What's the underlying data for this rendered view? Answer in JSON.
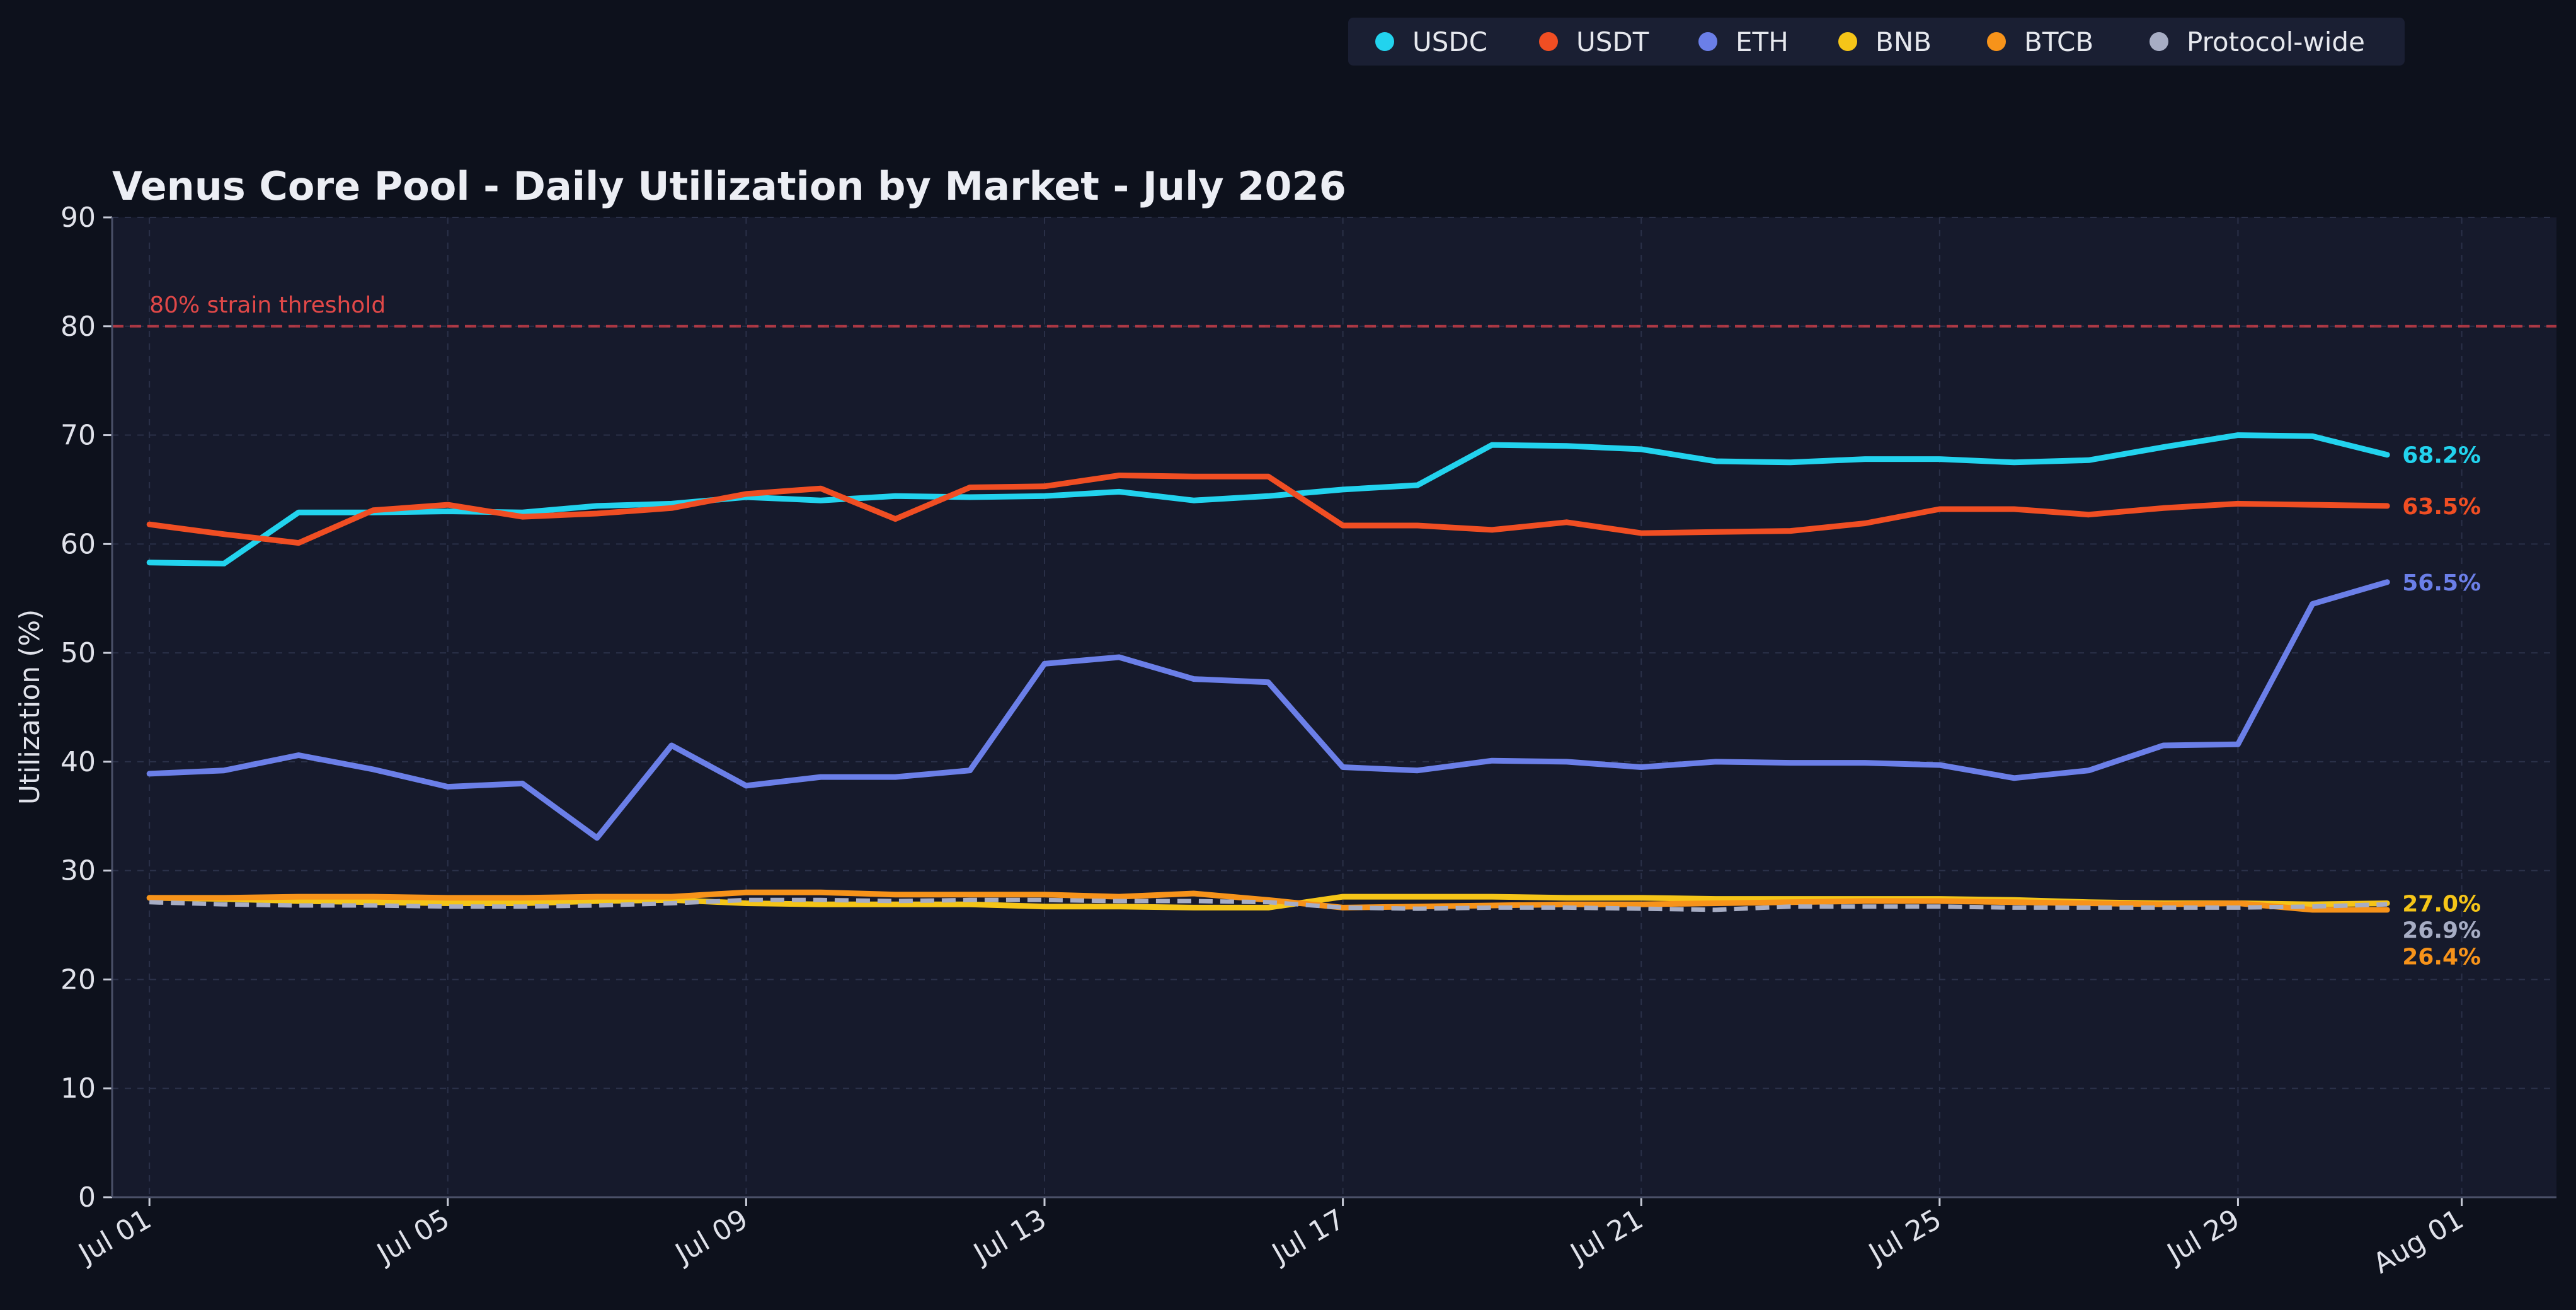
{
  "chart_data": {
    "type": "line",
    "title": "Venus Core Pool - Daily Utilization by Market - July 2026",
    "xlabel": "",
    "ylabel": "Utilization (%)",
    "ylim": [
      0,
      90
    ],
    "yticks": [
      0,
      10,
      20,
      30,
      40,
      50,
      60,
      70,
      80,
      90
    ],
    "x": [
      "2026-07-01",
      "2026-07-02",
      "2026-07-03",
      "2026-07-04",
      "2026-07-05",
      "2026-07-06",
      "2026-07-07",
      "2026-07-08",
      "2026-07-09",
      "2026-07-10",
      "2026-07-11",
      "2026-07-12",
      "2026-07-13",
      "2026-07-14",
      "2026-07-15",
      "2026-07-16",
      "2026-07-17",
      "2026-07-18",
      "2026-07-19",
      "2026-07-20",
      "2026-07-21",
      "2026-07-22",
      "2026-07-23",
      "2026-07-24",
      "2026-07-25",
      "2026-07-26",
      "2026-07-27",
      "2026-07-28",
      "2026-07-29",
      "2026-07-30",
      "2026-07-31"
    ],
    "xlim": [
      "2026-06-30",
      "2026-08-02"
    ],
    "xticks": [
      {
        "date": "2026-07-01",
        "label": "Jul 01"
      },
      {
        "date": "2026-07-05",
        "label": "Jul 05"
      },
      {
        "date": "2026-07-09",
        "label": "Jul 09"
      },
      {
        "date": "2026-07-13",
        "label": "Jul 13"
      },
      {
        "date": "2026-07-17",
        "label": "Jul 17"
      },
      {
        "date": "2026-07-21",
        "label": "Jul 21"
      },
      {
        "date": "2026-07-25",
        "label": "Jul 25"
      },
      {
        "date": "2026-07-29",
        "label": "Jul 29"
      },
      {
        "date": "2026-08-01",
        "label": "Aug 01"
      }
    ],
    "grid": true,
    "legend_position": "top-right",
    "threshold": {
      "value": 80,
      "label": "80% strain threshold",
      "color": "#d9404a"
    },
    "series": [
      {
        "name": "USDC",
        "color": "#22d3ee",
        "end_label": "68.2%",
        "dashed": false,
        "values": [
          58.3,
          58.2,
          62.9,
          62.9,
          63.0,
          62.9,
          63.5,
          63.7,
          64.3,
          64.0,
          64.4,
          64.3,
          64.4,
          64.8,
          64.0,
          64.4,
          65.0,
          65.4,
          69.1,
          69.0,
          68.7,
          67.6,
          67.5,
          67.8,
          67.8,
          67.5,
          67.7,
          68.9,
          70.0,
          69.9,
          68.2
        ]
      },
      {
        "name": "USDT",
        "color": "#f04e23",
        "end_label": "63.5%",
        "dashed": false,
        "values": [
          61.8,
          60.9,
          60.1,
          63.1,
          63.6,
          62.5,
          62.8,
          63.3,
          64.6,
          65.1,
          62.3,
          65.2,
          65.3,
          66.3,
          66.2,
          66.2,
          61.7,
          61.7,
          61.3,
          62.0,
          61.0,
          61.1,
          61.2,
          61.9,
          63.2,
          63.2,
          62.7,
          63.3,
          63.7,
          63.6,
          63.5
        ]
      },
      {
        "name": "ETH",
        "color": "#6b7fe8",
        "end_label": "56.5%",
        "dashed": false,
        "values": [
          38.9,
          39.2,
          40.6,
          39.3,
          37.7,
          38.0,
          33.0,
          41.5,
          37.8,
          38.6,
          38.6,
          39.2,
          49.0,
          49.6,
          47.6,
          47.3,
          39.5,
          39.2,
          40.1,
          40.0,
          39.5,
          40.0,
          39.9,
          39.9,
          39.7,
          38.5,
          39.2,
          41.5,
          41.6,
          54.5,
          56.5
        ]
      },
      {
        "name": "BNB",
        "color": "#f5c518",
        "end_label": "27.0%",
        "dashed": false,
        "values": [
          27.5,
          27.4,
          27.2,
          27.1,
          27.0,
          27.0,
          27.2,
          27.3,
          27.0,
          26.9,
          26.9,
          26.9,
          26.7,
          26.7,
          26.6,
          26.6,
          27.6,
          27.6,
          27.6,
          27.5,
          27.5,
          27.4,
          27.4,
          27.4,
          27.4,
          27.3,
          27.1,
          27.0,
          27.0,
          26.9,
          27.0
        ]
      },
      {
        "name": "BTCB",
        "color": "#f7931a",
        "end_label": "26.4%",
        "dashed": false,
        "values": [
          27.5,
          27.5,
          27.6,
          27.6,
          27.5,
          27.5,
          27.6,
          27.6,
          28.0,
          28.0,
          27.8,
          27.8,
          27.8,
          27.6,
          27.9,
          27.3,
          26.6,
          26.7,
          26.8,
          26.9,
          26.9,
          27.0,
          27.1,
          27.2,
          27.2,
          27.1,
          27.0,
          26.9,
          27.0,
          26.4,
          26.4
        ]
      },
      {
        "name": "Protocol-wide",
        "color": "#a7adc4",
        "end_label": "26.9%",
        "dashed": true,
        "values": [
          27.1,
          26.9,
          26.8,
          26.8,
          26.7,
          26.7,
          26.8,
          27.0,
          27.3,
          27.3,
          27.2,
          27.3,
          27.3,
          27.2,
          27.2,
          27.1,
          26.6,
          26.5,
          26.6,
          26.6,
          26.5,
          26.4,
          26.7,
          26.7,
          26.7,
          26.6,
          26.6,
          26.6,
          26.6,
          26.7,
          26.9
        ]
      }
    ]
  },
  "colors": {
    "background": "#0d111c",
    "plot_background": "#161a2c",
    "text": "#e0e2ea"
  }
}
